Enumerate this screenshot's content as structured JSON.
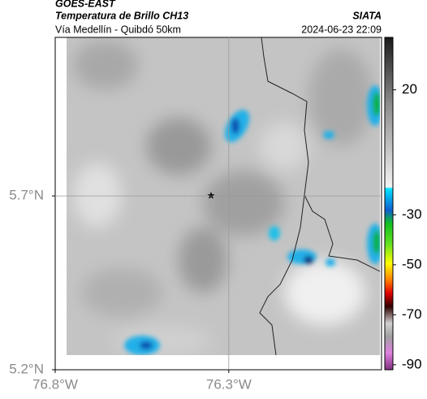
{
  "header": {
    "source": "GOES-EAST",
    "title": "Temperatura de Brillo CH13",
    "subtitle": "Vía Medellín - Quibdó 50km",
    "org": "SIATA",
    "datetime": "2024-06-23 22:09"
  },
  "map": {
    "xlim": [
      -76.8,
      -75.86
    ],
    "ylim": [
      5.2,
      6.156
    ],
    "xticks": [
      {
        "value": -76.8,
        "label": "76.8°W"
      },
      {
        "value": -76.3,
        "label": "76.3°W"
      }
    ],
    "yticks": [
      {
        "value": 5.2,
        "label": "5.2°N"
      },
      {
        "value": 5.7,
        "label": "5.7°N"
      }
    ],
    "grid": true
  },
  "colorbar": {
    "lim": [
      -92,
      41
    ],
    "ticks": [
      20,
      -30,
      -50,
      -70,
      -90
    ]
  }
}
